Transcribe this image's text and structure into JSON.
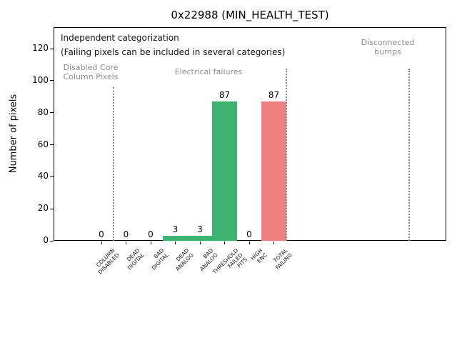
{
  "chart_data": {
    "type": "bar",
    "title": "0x22988 (MIN_HEALTH_TEST)",
    "xlabel": "",
    "ylabel": "Number of pixels",
    "ylim": [
      0,
      133
    ],
    "yticks": [
      0,
      20,
      40,
      60,
      80,
      100,
      120
    ],
    "grid": false,
    "legend": null,
    "categories": [
      "COLUMN\nDISABLED",
      "DEAD\nDIGITAL",
      "BAD\nDIGITAL",
      "DEAD\nANALOG",
      "BAD\nANALOG",
      "THRESHOLD\nFAILED\nFITS",
      "HIGH\nENC",
      "TOTAL\nFAILING"
    ],
    "values": [
      0,
      0,
      0,
      3,
      3,
      87,
      0,
      87
    ],
    "bar_value_labels": [
      "0",
      "0",
      "0",
      "3",
      "3",
      "87",
      "0",
      "87"
    ],
    "bar_colors": [
      "#3cb371",
      "#3cb371",
      "#3cb371",
      "#3cb371",
      "#3cb371",
      "#3cb371",
      "#3cb371",
      "#f08080"
    ],
    "notes": {
      "line1": "Independent categorization",
      "line2": "(Failing pixels can be included in several categories)"
    },
    "sections": [
      {
        "label": "Disabled Core\nColumn Pixels",
        "separator_x": 0.5
      },
      {
        "label": "Electrical failures",
        "separator_x": 7.5
      },
      {
        "label": "Disconnected\nbumps",
        "separator_x": 12.5
      }
    ],
    "colors": {
      "bar_green": "#3cb371",
      "bar_red": "#f08080",
      "section_text": "#8c8c8c",
      "separator": "#878787"
    }
  }
}
